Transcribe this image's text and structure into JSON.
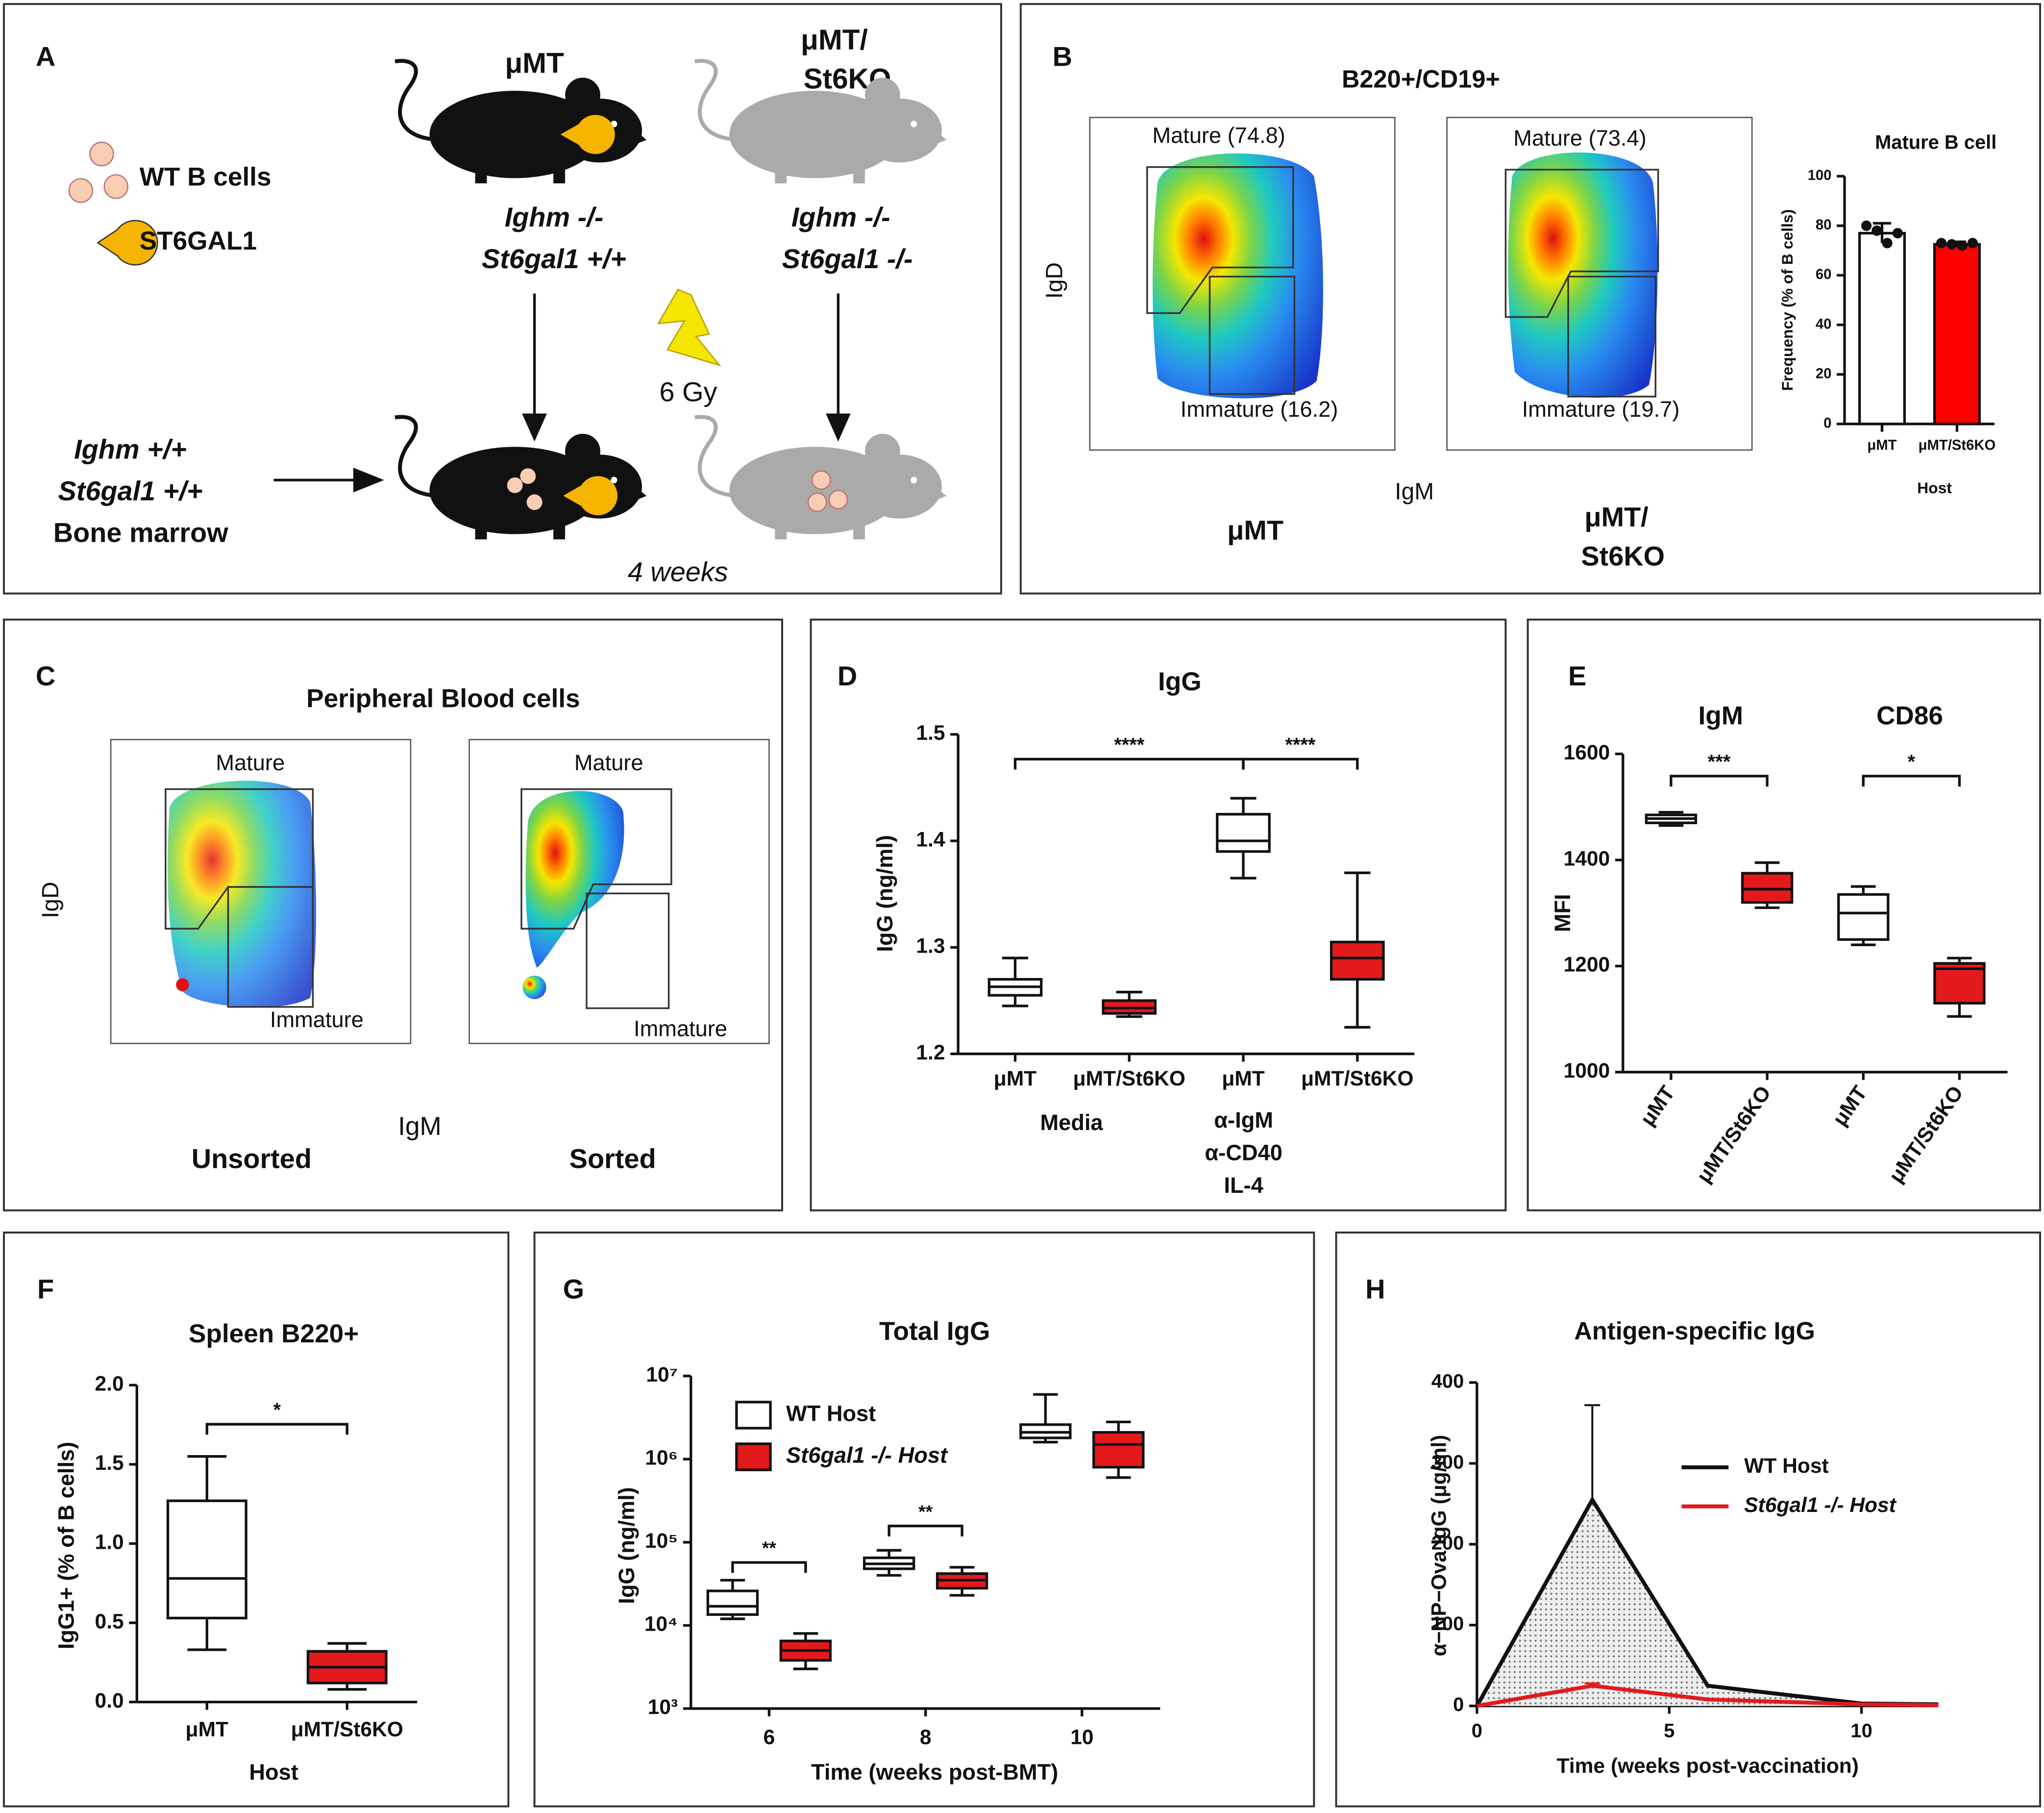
{
  "figure_a": {
    "letter": "A",
    "legend": [
      "WT B cells",
      "ST6GAL1"
    ],
    "host_1": [
      "μMT"
    ],
    "host_2": [
      "μMT/",
      "St6KO"
    ],
    "genotype_1": [
      "Ighm -/-",
      "St6gal1 +/+"
    ],
    "genotype_2": [
      "Ighm -/-",
      "St6gal1 -/-"
    ],
    "dose": "6 Gy",
    "donor": [
      "Ighm +/+",
      "St6gal1 +/+",
      "Bone marrow"
    ],
    "duration": "4 weeks"
  },
  "figure_b": {
    "letter": "B",
    "title": "B220+/CD19+",
    "gates_1": [
      "Mature (74.8)",
      "Immature (16.2)"
    ],
    "gates_2": [
      "Mature (73.4)",
      "Immature (19.7)"
    ],
    "y_label": "IgD",
    "x_label": "IgM",
    "sample_1": [
      "μMT"
    ],
    "sample_2": [
      "μMT/",
      "St6KO"
    ]
  },
  "figure_c": {
    "letter": "C",
    "title": "Peripheral Blood cells",
    "gates_1": [
      "Mature",
      "Immature"
    ],
    "gates_2": [
      "Mature",
      "Immature"
    ],
    "y_label": "IgD",
    "x_label": "IgM",
    "samples": [
      "Unsorted",
      "Sorted"
    ]
  },
  "chart_data": [
    {
      "type": "bar",
      "title": "Mature B cell",
      "ylabel": "Frequency (% of B cells)",
      "xlabel": "Host",
      "categories": [
        "μMT",
        "μMT/St6KO"
      ],
      "values": [
        77,
        72.5
      ],
      "errors": [
        4,
        1
      ],
      "colors": [
        "#ffffff",
        "#ff0000"
      ],
      "points": [
        [
          80,
          78,
          73,
          77
        ],
        [
          73,
          72.5,
          72,
          73
        ]
      ],
      "ylim": [
        0,
        100
      ],
      "yticks": [
        0,
        20,
        40,
        60,
        80,
        100
      ]
    },
    {
      "type": "box",
      "letter": "D",
      "title": "IgG",
      "ylabel": "IgG (ng/ml)",
      "categories": [
        "μMT",
        "μMT/St6KO",
        "μMT",
        "μMT/St6KO"
      ],
      "groups": [
        [
          "Media"
        ],
        [
          "α-IgM",
          "α-CD40",
          "IL-4"
        ]
      ],
      "colors": [
        "#ffffff",
        "#e31a1c",
        "#ffffff",
        "#e31a1c"
      ],
      "boxes": [
        {
          "min": 1.245,
          "q1": 1.255,
          "median": 1.263,
          "q3": 1.27,
          "max": 1.29
        },
        {
          "min": 1.235,
          "q1": 1.238,
          "median": 1.243,
          "q3": 1.25,
          "max": 1.258
        },
        {
          "min": 1.365,
          "q1": 1.39,
          "median": 1.4,
          "q3": 1.425,
          "max": 1.44
        },
        {
          "min": 1.225,
          "q1": 1.27,
          "median": 1.29,
          "q3": 1.305,
          "max": 1.37
        }
      ],
      "significance": [
        "****",
        "****"
      ],
      "ylim": [
        1.2,
        1.5
      ],
      "yticks": [
        1.2,
        1.3,
        1.4,
        1.5
      ]
    },
    {
      "type": "box",
      "letter": "E",
      "ylabel": "MFI",
      "categories": [
        "μMT",
        "μMT/St6KO",
        "μMT",
        "μMT/St6KO"
      ],
      "groups": [
        [
          "IgM"
        ],
        [
          "CD86"
        ]
      ],
      "colors": [
        "#ffffff",
        "#e31a1c",
        "#ffffff",
        "#e31a1c"
      ],
      "boxes": [
        {
          "min": 1465,
          "q1": 1470,
          "median": 1478,
          "q3": 1485,
          "max": 1490
        },
        {
          "min": 1310,
          "q1": 1320,
          "median": 1345,
          "q3": 1375,
          "max": 1395
        },
        {
          "min": 1240,
          "q1": 1250,
          "median": 1300,
          "q3": 1335,
          "max": 1350
        },
        {
          "min": 1105,
          "q1": 1130,
          "median": 1195,
          "q3": 1205,
          "max": 1215
        }
      ],
      "significance": [
        "***",
        "*"
      ],
      "ylim": [
        1000,
        1600
      ],
      "yticks": [
        1000,
        1200,
        1400,
        1600
      ]
    },
    {
      "type": "box",
      "letter": "F",
      "title": "Spleen B220+",
      "ylabel": "IgG1+ (% of B cells)",
      "xlabel": "Host",
      "categories": [
        "μMT",
        "μMT/St6KO"
      ],
      "colors": [
        "#ffffff",
        "#e31a1c"
      ],
      "boxes": [
        {
          "min": 0.33,
          "q1": 0.53,
          "median": 0.78,
          "q3": 1.27,
          "max": 1.55
        },
        {
          "min": 0.08,
          "q1": 0.12,
          "median": 0.22,
          "q3": 0.32,
          "max": 0.37
        }
      ],
      "significance": [
        "*"
      ],
      "ylim": [
        0,
        2
      ],
      "yticks": [
        {
          "value": 0,
          "label": "0.0"
        },
        0.5,
        {
          "value": 1,
          "label": "1.0"
        },
        1.5,
        {
          "value": 2,
          "label": "2.0"
        }
      ]
    },
    {
      "type": "box",
      "letter": "G",
      "title": "Total IgG",
      "ylabel": "IgG (ng/ml)",
      "xlabel": "Time (weeks post-BMT)",
      "categories": [
        "6",
        "8",
        "10"
      ],
      "log_scale": true,
      "legend": "upper left",
      "series": [
        {
          "name": "WT Host",
          "color": "#ffffff",
          "boxes": [
            {
              "min": 12000,
              "q1": 13500,
              "median": 17000,
              "q3": 26000,
              "max": 35000
            },
            {
              "min": 40000,
              "q1": 48000,
              "median": 55000,
              "q3": 65000,
              "max": 80000
            },
            {
              "min": 1600000,
              "q1": 1800000,
              "median": 2100000,
              "q3": 2600000,
              "max": 6000000
            }
          ]
        },
        {
          "name": "St6gal1 -/- Host",
          "color": "#e31a1c",
          "boxes": [
            {
              "min": 3000,
              "q1": 3800,
              "median": 5000,
              "q3": 6500,
              "max": 8000
            },
            {
              "min": 23000,
              "q1": 28000,
              "median": 35000,
              "q3": 42000,
              "max": 50000
            },
            {
              "min": 600000,
              "q1": 800000,
              "median": 1500000,
              "q3": 2100000,
              "max": 2800000
            }
          ]
        }
      ],
      "significance": [
        "**",
        "**"
      ],
      "ylim": [
        1000,
        10000000
      ],
      "yticks": [
        {
          "value": 1000,
          "label": "10³"
        },
        {
          "value": 10000,
          "label": "10⁴"
        },
        {
          "value": 100000,
          "label": "10⁵"
        },
        {
          "value": 1000000,
          "label": "10⁶"
        },
        {
          "value": 10000000,
          "label": "10⁷"
        }
      ]
    },
    {
      "type": "line",
      "letter": "H",
      "title": "Antigen-specific IgG",
      "ylabel": "α−NP−Ova IgG (μg/ml)",
      "xlabel": "Time (weeks post-vaccination)",
      "legend": "upper right",
      "x": [
        0,
        3,
        6,
        10,
        12
      ],
      "series": [
        {
          "name": "WT Host",
          "color": "#111111",
          "values": [
            0,
            255,
            25,
            3,
            2
          ],
          "errors": [
            null,
            117,
            null,
            null,
            null
          ]
        },
        {
          "name": "St6gal1 -/- Host",
          "color": "#e31a1c",
          "values": [
            0,
            25,
            8,
            2,
            1
          ],
          "errors": [
            null,
            3,
            null,
            null,
            null
          ]
        }
      ],
      "xlim": [
        0,
        12
      ],
      "xticks": [
        0,
        5,
        10
      ],
      "ylim": [
        0,
        400
      ],
      "yticks": [
        0,
        100,
        200,
        300,
        400
      ]
    }
  ]
}
